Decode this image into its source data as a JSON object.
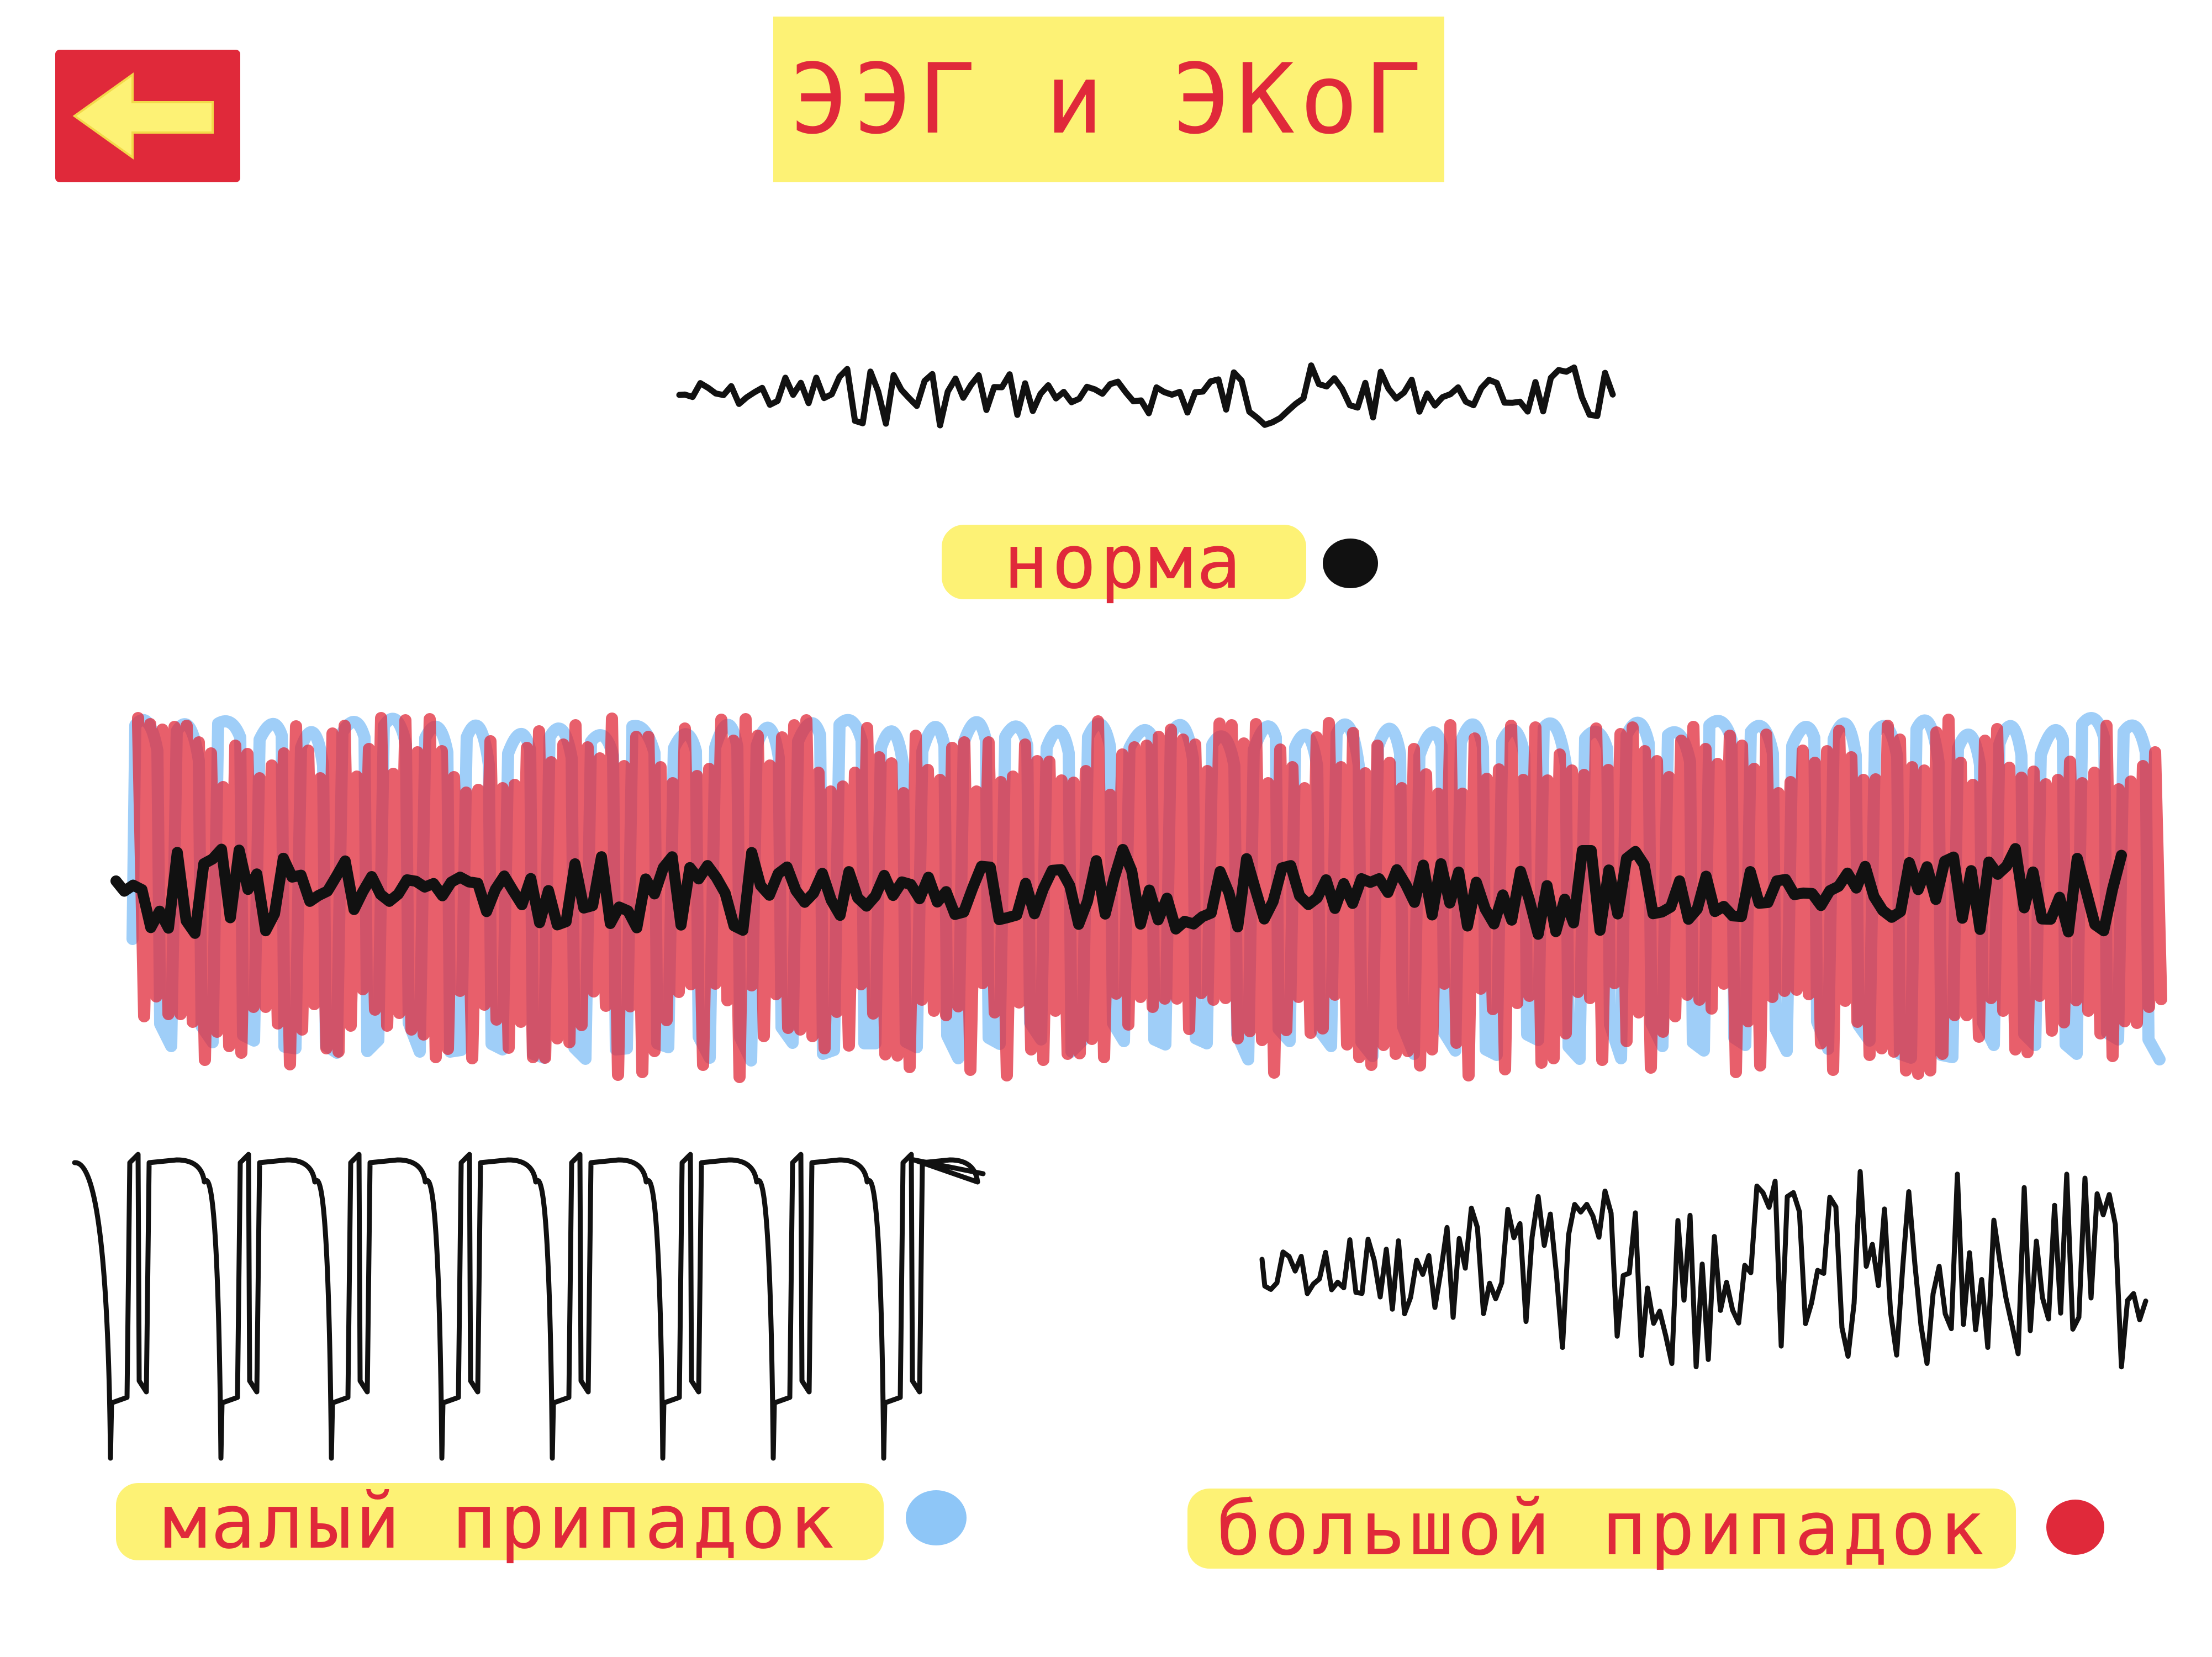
{
  "header": {
    "title": "ЭЭГ и ЭКоГ",
    "back_icon": "left-arrow-icon"
  },
  "legend": {
    "normal": {
      "label": "норма",
      "color": "#111111"
    },
    "petit_mal": {
      "label": "малый припадок",
      "color": "#8ec6f7"
    },
    "grand_mal": {
      "label": "большой припадок",
      "color": "#e0293a"
    }
  },
  "colors": {
    "accent_red": "#e0293a",
    "highlight_yellow": "#fdf275",
    "wave_black": "#111111",
    "wave_blue": "#8ec6f7",
    "wave_red": "#e0293a"
  }
}
